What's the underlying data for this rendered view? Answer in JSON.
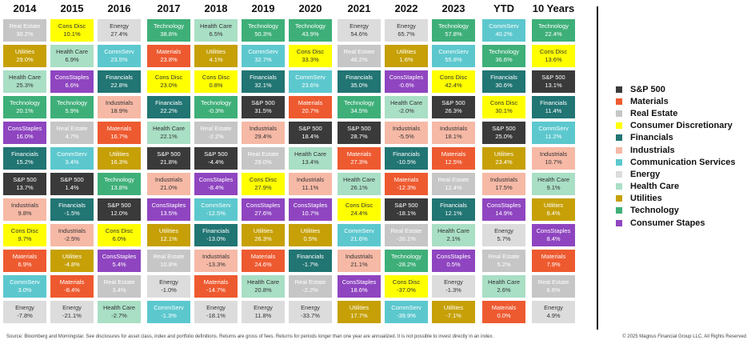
{
  "chart_data": {
    "type": "table",
    "columns": [
      "2014",
      "2015",
      "2016",
      "2017",
      "2018",
      "2019",
      "2020",
      "2021",
      "2022",
      "2023",
      "YTD",
      "10 Years"
    ],
    "sectors": {
      "S&P 500": {
        "color": "#3a3a3a",
        "text": "dark"
      },
      "Materials": {
        "color": "#ee5a30",
        "text": "dark"
      },
      "Real Estate": {
        "color": "#c6c6c6",
        "text": "dark"
      },
      "Consumer Discretionary": {
        "color": "#ffff00",
        "text": "light"
      },
      "Financials": {
        "color": "#217573",
        "text": "dark"
      },
      "Industrials": {
        "color": "#f6b9a6",
        "text": "light"
      },
      "Communication Services": {
        "color": "#5cc8ce",
        "text": "dark"
      },
      "Energy": {
        "color": "#dcdcdc",
        "text": "light"
      },
      "Health Care": {
        "color": "#a9dfc5",
        "text": "light"
      },
      "Utilities": {
        "color": "#c6a006",
        "text": "dark"
      },
      "Technology": {
        "color": "#3eaf78",
        "text": "dark"
      },
      "Consumer Stapes": {
        "color": "#8f45c0",
        "text": "dark"
      }
    },
    "data": [
      [
        {
          "label": "Real Estate",
          "value": "30.2%",
          "sector": "Real Estate"
        },
        {
          "label": "Utilities",
          "value": "29.0%",
          "sector": "Utilities"
        },
        {
          "label": "Health Care",
          "value": "25.3%",
          "sector": "Health Care"
        },
        {
          "label": "Technology",
          "value": "20.1%",
          "sector": "Technology"
        },
        {
          "label": "ConsStaples",
          "value": "16.0%",
          "sector": "Consumer Stapes"
        },
        {
          "label": "Financials",
          "value": "15.2%",
          "sector": "Financials"
        },
        {
          "label": "S&P 500",
          "value": "13.7%",
          "sector": "S&P 500"
        },
        {
          "label": "Industrials",
          "value": "9.8%",
          "sector": "Industrials"
        },
        {
          "label": "Cons Disc",
          "value": "9.7%",
          "sector": "Consumer Discretionary"
        },
        {
          "label": "Materials",
          "value": "6.9%",
          "sector": "Materials"
        },
        {
          "label": "CommServ",
          "value": "3.0%",
          "sector": "Communication Services"
        },
        {
          "label": "Energy",
          "value": "-7.8%",
          "sector": "Energy"
        }
      ],
      [
        {
          "label": "Cons Disc",
          "value": "10.1%",
          "sector": "Consumer Discretionary"
        },
        {
          "label": "Health Care",
          "value": "6.9%",
          "sector": "Health Care"
        },
        {
          "label": "ConsStaples",
          "value": "6.6%",
          "sector": "Consumer Stapes"
        },
        {
          "label": "Technology",
          "value": "5.9%",
          "sector": "Technology"
        },
        {
          "label": "Real Estate",
          "value": "4.7%",
          "sector": "Real Estate"
        },
        {
          "label": "CommServ",
          "value": "3.4%",
          "sector": "Communication Services"
        },
        {
          "label": "S&P 500",
          "value": "1.4%",
          "sector": "S&P 500"
        },
        {
          "label": "Financials",
          "value": "-1.5%",
          "sector": "Financials"
        },
        {
          "label": "Industrials",
          "value": "-2.5%",
          "sector": "Industrials"
        },
        {
          "label": "Utilities",
          "value": "-4.8%",
          "sector": "Utilities"
        },
        {
          "label": "Materials",
          "value": "-8.4%",
          "sector": "Materials"
        },
        {
          "label": "Energy",
          "value": "-21.1%",
          "sector": "Energy"
        }
      ],
      [
        {
          "label": "Energy",
          "value": "27.4%",
          "sector": "Energy"
        },
        {
          "label": "CommServ",
          "value": "23.5%",
          "sector": "Communication Services"
        },
        {
          "label": "Financials",
          "value": "22.8%",
          "sector": "Financials"
        },
        {
          "label": "Industrials",
          "value": "18.9%",
          "sector": "Industrials"
        },
        {
          "label": "Materials",
          "value": "16.7%",
          "sector": "Materials"
        },
        {
          "label": "Utilities",
          "value": "16.3%",
          "sector": "Utilities"
        },
        {
          "label": "Technology",
          "value": "13.8%",
          "sector": "Technology"
        },
        {
          "label": "S&P 500",
          "value": "12.0%",
          "sector": "S&P 500"
        },
        {
          "label": "Cons Disc",
          "value": "6.0%",
          "sector": "Consumer Discretionary"
        },
        {
          "label": "ConsStaples",
          "value": "5.4%",
          "sector": "Consumer Stapes"
        },
        {
          "label": "Real Estate",
          "value": "3.4%",
          "sector": "Real Estate"
        },
        {
          "label": "Health Care",
          "value": "-2.7%",
          "sector": "Health Care"
        }
      ],
      [
        {
          "label": "Technology",
          "value": "38.8%",
          "sector": "Technology"
        },
        {
          "label": "Materials",
          "value": "23.8%",
          "sector": "Materials"
        },
        {
          "label": "Cons Disc",
          "value": "23.0%",
          "sector": "Consumer Discretionary"
        },
        {
          "label": "Financials",
          "value": "22.2%",
          "sector": "Financials"
        },
        {
          "label": "Health Care",
          "value": "22.1%",
          "sector": "Health Care"
        },
        {
          "label": "S&P 500",
          "value": "21.8%",
          "sector": "S&P 500"
        },
        {
          "label": "Industrials",
          "value": "21.0%",
          "sector": "Industrials"
        },
        {
          "label": "ConsStaples",
          "value": "13.5%",
          "sector": "Consumer Stapes"
        },
        {
          "label": "Utilities",
          "value": "12.1%",
          "sector": "Utilities"
        },
        {
          "label": "Real Estate",
          "value": "10.8%",
          "sector": "Real Estate"
        },
        {
          "label": "Energy",
          "value": "-1.0%",
          "sector": "Energy"
        },
        {
          "label": "CommServ",
          "value": "-1.3%",
          "sector": "Communication Services"
        }
      ],
      [
        {
          "label": "Health Care",
          "value": "6.5%",
          "sector": "Health Care"
        },
        {
          "label": "Utilities",
          "value": "4.1%",
          "sector": "Utilities"
        },
        {
          "label": "Cons Disc",
          "value": "0.8%",
          "sector": "Consumer Discretionary"
        },
        {
          "label": "Technology",
          "value": "-0.3%",
          "sector": "Technology"
        },
        {
          "label": "Real Estate",
          "value": "-2.2%",
          "sector": "Real Estate"
        },
        {
          "label": "S&P 500",
          "value": "-4.4%",
          "sector": "S&P 500"
        },
        {
          "label": "ConsStaples",
          "value": "-8.4%",
          "sector": "Consumer Stapes"
        },
        {
          "label": "CommServ",
          "value": "-12.5%",
          "sector": "Communication Services"
        },
        {
          "label": "Financials",
          "value": "-13.0%",
          "sector": "Financials"
        },
        {
          "label": "Industrials",
          "value": "-13.3%",
          "sector": "Industrials"
        },
        {
          "label": "Materials",
          "value": "-14.7%",
          "sector": "Materials"
        },
        {
          "label": "Energy",
          "value": "-18.1%",
          "sector": "Energy"
        }
      ],
      [
        {
          "label": "Technology",
          "value": "50.3%",
          "sector": "Technology"
        },
        {
          "label": "CommServ",
          "value": "32.7%",
          "sector": "Communication Services"
        },
        {
          "label": "Financials",
          "value": "32.1%",
          "sector": "Financials"
        },
        {
          "label": "S&P 500",
          "value": "31.5%",
          "sector": "S&P 500"
        },
        {
          "label": "Industrials",
          "value": "29.4%",
          "sector": "Industrials"
        },
        {
          "label": "Real Estate",
          "value": "29.0%",
          "sector": "Real Estate"
        },
        {
          "label": "Cons Disc",
          "value": "27.9%",
          "sector": "Consumer Discretionary"
        },
        {
          "label": "ConsStaples",
          "value": "27.6%",
          "sector": "Consumer Stapes"
        },
        {
          "label": "Utilities",
          "value": "26.3%",
          "sector": "Utilities"
        },
        {
          "label": "Materials",
          "value": "24.6%",
          "sector": "Materials"
        },
        {
          "label": "Health Care",
          "value": "20.8%",
          "sector": "Health Care"
        },
        {
          "label": "Energy",
          "value": "11.8%",
          "sector": "Energy"
        }
      ],
      [
        {
          "label": "Technology",
          "value": "43.9%",
          "sector": "Technology"
        },
        {
          "label": "Cons Disc",
          "value": "33.3%",
          "sector": "Consumer Discretionary"
        },
        {
          "label": "CommServ",
          "value": "23.6%",
          "sector": "Communication Services"
        },
        {
          "label": "Materials",
          "value": "20.7%",
          "sector": "Materials"
        },
        {
          "label": "S&P 500",
          "value": "18.4%",
          "sector": "S&P 500"
        },
        {
          "label": "Health Care",
          "value": "13.4%",
          "sector": "Health Care"
        },
        {
          "label": "Industrials",
          "value": "11.1%",
          "sector": "Industrials"
        },
        {
          "label": "ConsStaples",
          "value": "10.7%",
          "sector": "Consumer Stapes"
        },
        {
          "label": "Utilities",
          "value": "0.5%",
          "sector": "Utilities"
        },
        {
          "label": "Financials",
          "value": "-1.7%",
          "sector": "Financials"
        },
        {
          "label": "Real Estate",
          "value": "-2.2%",
          "sector": "Real Estate"
        },
        {
          "label": "Energy",
          "value": "-33.7%",
          "sector": "Energy"
        }
      ],
      [
        {
          "label": "Energy",
          "value": "54.6%",
          "sector": "Energy"
        },
        {
          "label": "Real Estate",
          "value": "46.2%",
          "sector": "Real Estate"
        },
        {
          "label": "Financials",
          "value": "35.0%",
          "sector": "Financials"
        },
        {
          "label": "Technology",
          "value": "34.5%",
          "sector": "Technology"
        },
        {
          "label": "S&P 500",
          "value": "28.7%",
          "sector": "S&P 500"
        },
        {
          "label": "Materials",
          "value": "27.3%",
          "sector": "Materials"
        },
        {
          "label": "Health Care",
          "value": "26.1%",
          "sector": "Health Care"
        },
        {
          "label": "Cons Disc",
          "value": "24.4%",
          "sector": "Consumer Discretionary"
        },
        {
          "label": "CommServ",
          "value": "21.6%",
          "sector": "Communication Services"
        },
        {
          "label": "Industrials",
          "value": "21.1%",
          "sector": "Industrials"
        },
        {
          "label": "ConsStaples",
          "value": "18.6%",
          "sector": "Consumer Stapes"
        },
        {
          "label": "Utilities",
          "value": "17.7%",
          "sector": "Utilities"
        }
      ],
      [
        {
          "label": "Energy",
          "value": "65.7%",
          "sector": "Energy"
        },
        {
          "label": "Utilities",
          "value": "1.6%",
          "sector": "Utilities"
        },
        {
          "label": "ConsStaples",
          "value": "-0.6%",
          "sector": "Consumer Stapes"
        },
        {
          "label": "Health Care",
          "value": "-2.0%",
          "sector": "Health Care"
        },
        {
          "label": "Industrials",
          "value": "-5.5%",
          "sector": "Industrials"
        },
        {
          "label": "Financials",
          "value": "-10.5%",
          "sector": "Financials"
        },
        {
          "label": "Materials",
          "value": "-12.3%",
          "sector": "Materials"
        },
        {
          "label": "S&P 500",
          "value": "-18.1%",
          "sector": "S&P 500"
        },
        {
          "label": "Real Estate",
          "value": "-26.1%",
          "sector": "Real Estate"
        },
        {
          "label": "Technology",
          "value": "-28.2%",
          "sector": "Technology"
        },
        {
          "label": "Cons Disc",
          "value": "-37.0%",
          "sector": "Consumer Discretionary"
        },
        {
          "label": "CommServ",
          "value": "-39.9%",
          "sector": "Communication Services"
        }
      ],
      [
        {
          "label": "Technology",
          "value": "57.8%",
          "sector": "Technology"
        },
        {
          "label": "CommServ",
          "value": "55.8%",
          "sector": "Communication Services"
        },
        {
          "label": "Cons Disc",
          "value": "42.4%",
          "sector": "Consumer Discretionary"
        },
        {
          "label": "S&P 500",
          "value": "26.3%",
          "sector": "S&P 500"
        },
        {
          "label": "Industrials",
          "value": "18.1%",
          "sector": "Industrials"
        },
        {
          "label": "Materials",
          "value": "12.5%",
          "sector": "Materials"
        },
        {
          "label": "Real Estate",
          "value": "12.4%",
          "sector": "Real Estate"
        },
        {
          "label": "Financials",
          "value": "12.1%",
          "sector": "Financials"
        },
        {
          "label": "Health Care",
          "value": "2.1%",
          "sector": "Health Care"
        },
        {
          "label": "ConsStaples",
          "value": "0.5%",
          "sector": "Consumer Stapes"
        },
        {
          "label": "Energy",
          "value": "-1.3%",
          "sector": "Energy"
        },
        {
          "label": "Utilities",
          "value": "-7.1%",
          "sector": "Utilities"
        }
      ],
      [
        {
          "label": "CommServ",
          "value": "40.2%",
          "sector": "Communication Services"
        },
        {
          "label": "Technology",
          "value": "36.6%",
          "sector": "Technology"
        },
        {
          "label": "Financials",
          "value": "30.6%",
          "sector": "Financials"
        },
        {
          "label": "Cons Disc",
          "value": "30.1%",
          "sector": "Consumer Discretionary"
        },
        {
          "label": "S&P 500",
          "value": "25.0%",
          "sector": "S&P 500"
        },
        {
          "label": "Utilities",
          "value": "23.4%",
          "sector": "Utilities"
        },
        {
          "label": "Industrials",
          "value": "17.5%",
          "sector": "Industrials"
        },
        {
          "label": "ConsStaples",
          "value": "14.9%",
          "sector": "Consumer Stapes"
        },
        {
          "label": "Energy",
          "value": "5.7%",
          "sector": "Energy"
        },
        {
          "label": "Real Estate",
          "value": "5.2%",
          "sector": "Real Estate"
        },
        {
          "label": "Health Care",
          "value": "2.6%",
          "sector": "Health Care"
        },
        {
          "label": "Materials",
          "value": "0.0%",
          "sector": "Materials"
        }
      ],
      [
        {
          "label": "Technology",
          "value": "22.4%",
          "sector": "Technology"
        },
        {
          "label": "Cons Disc",
          "value": "13.6%",
          "sector": "Consumer Discretionary"
        },
        {
          "label": "S&P 500",
          "value": "13.1%",
          "sector": "S&P 500"
        },
        {
          "label": "Financials",
          "value": "11.4%",
          "sector": "Financials"
        },
        {
          "label": "CommServ",
          "value": "11.2%",
          "sector": "Communication Services"
        },
        {
          "label": "Industrials",
          "value": "10.7%",
          "sector": "Industrials"
        },
        {
          "label": "Health Care",
          "value": "9.1%",
          "sector": "Health Care"
        },
        {
          "label": "Utilities",
          "value": "8.4%",
          "sector": "Utilities"
        },
        {
          "label": "ConsStaples",
          "value": "8.4%",
          "sector": "Consumer Stapes"
        },
        {
          "label": "Materials",
          "value": "7.9%",
          "sector": "Materials"
        },
        {
          "label": "Real Estate",
          "value": "6.6%",
          "sector": "Real Estate"
        },
        {
          "label": "Energy",
          "value": "4.9%",
          "sector": "Energy"
        }
      ]
    ],
    "legend": [
      "S&P 500",
      "Materials",
      "Real Estate",
      "Consumer Discretionary",
      "Financials",
      "Industrials",
      "Communication Services",
      "Energy",
      "Health Care",
      "Utilities",
      "Technology",
      "Consumer Stapes"
    ]
  },
  "footer": {
    "source": "Source: Bloomberg and Morningstar. See disclosures for asset class, index and portfolio definitions. Returns are gross of fees. Returns for periods longer than one year are annualized. It is not possible to invest directly in an index.",
    "copyright": "© 2025 Magnus Financial Group LLC. All Rights Reserved"
  }
}
